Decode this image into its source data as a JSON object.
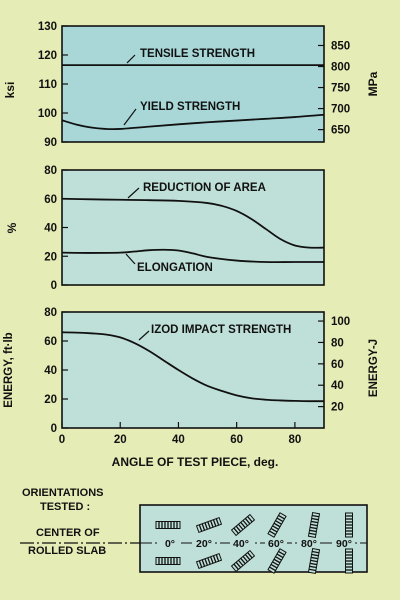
{
  "colors": {
    "page_background": "#e5ecb5",
    "panel_fill": "#bfe0d8",
    "strength_panel_fill": "#a9d7d8",
    "ink": "#111111"
  },
  "chart_data": [
    {
      "type": "line",
      "title": "",
      "xlabel": "",
      "ylabel": "ksi",
      "y2label": "MPa",
      "xlim": [
        0,
        90
      ],
      "ylim": [
        90,
        130
      ],
      "yticks": [
        "90",
        "100",
        "110",
        "120",
        "130"
      ],
      "y2ticks": [
        "650",
        "700",
        "750",
        "800",
        "850"
      ],
      "y2_values": [
        650,
        700,
        750,
        800,
        850
      ],
      "y2_to_y": 0.145038,
      "grid": false,
      "legend": "none",
      "series": [
        {
          "name": "TENSILE STRENGTH",
          "x": [
            0,
            15,
            30,
            45,
            60,
            75,
            90
          ],
          "y": [
            116.5,
            116.5,
            116.5,
            116.5,
            116.5,
            116.5,
            116.5
          ]
        },
        {
          "name": "YIELD STRENGTH",
          "x": [
            0,
            5,
            10,
            15,
            20,
            30,
            40,
            50,
            60,
            70,
            80,
            90
          ],
          "y": [
            97.5,
            96,
            95,
            94.5,
            94.5,
            95.3,
            96.1,
            96.8,
            97.4,
            98,
            98.6,
            99.4
          ]
        }
      ]
    },
    {
      "type": "line",
      "title": "",
      "xlabel": "",
      "ylabel": "%",
      "xlim": [
        0,
        90
      ],
      "ylim": [
        0,
        80
      ],
      "yticks": [
        "0",
        "20",
        "40",
        "60",
        "80"
      ],
      "grid": false,
      "legend": "none",
      "series": [
        {
          "name": "REDUCTION OF AREA",
          "x": [
            0,
            10,
            20,
            30,
            40,
            50,
            55,
            60,
            65,
            70,
            75,
            80,
            85,
            90
          ],
          "y": [
            60,
            59.6,
            59.3,
            59,
            58.5,
            57,
            55,
            51.5,
            46,
            39,
            32,
            27.5,
            26,
            26
          ]
        },
        {
          "name": "ELONGATION",
          "x": [
            0,
            10,
            20,
            25,
            30,
            35,
            40,
            45,
            50,
            60,
            70,
            80,
            90
          ],
          "y": [
            22.5,
            22.3,
            22.5,
            23.3,
            24.2,
            24.5,
            24,
            22,
            19.5,
            17,
            16,
            16,
            16
          ]
        }
      ]
    },
    {
      "type": "line",
      "title": "",
      "xlabel": "ANGLE OF TEST PIECE, deg.",
      "ylabel": "ENERGY, ft·lb",
      "y2label": "ENERGY-J",
      "xlim": [
        0,
        90
      ],
      "ylim": [
        0,
        80
      ],
      "xticks": [
        "0",
        "20",
        "40",
        "60",
        "80"
      ],
      "yticks": [
        "0",
        "20",
        "40",
        "60",
        "80"
      ],
      "y2ticks": [
        "20",
        "40",
        "60",
        "80",
        "100"
      ],
      "y2_values": [
        20,
        40,
        60,
        80,
        100
      ],
      "y2_to_y": 0.737562,
      "grid": false,
      "legend": "none",
      "series": [
        {
          "name": "IZOD IMPACT STRENGTH",
          "x": [
            0,
            5,
            10,
            15,
            20,
            25,
            30,
            35,
            40,
            45,
            50,
            55,
            60,
            65,
            70,
            75,
            80,
            85,
            90
          ],
          "y": [
            66,
            65.8,
            65.3,
            64.5,
            62.5,
            58.5,
            53,
            46.5,
            40,
            34,
            29,
            25.5,
            22.5,
            20.5,
            19.5,
            19,
            18.7,
            18.5,
            18.5
          ]
        }
      ]
    }
  ],
  "series_labels": {
    "tensile": "TENSILE STRENGTH",
    "yield": "YIELD STRENGTH",
    "reduction": "REDUCTION OF AREA",
    "elongation": "ELONGATION",
    "izod": "IZOD IMPACT STRENGTH"
  },
  "legend_box": {
    "heading_line1": "ORIENTATIONS",
    "heading_line2": "TESTED :",
    "center_line1": "CENTER OF",
    "center_line2": "ROLLED SLAB",
    "angles": [
      "0°",
      "20°",
      "40°",
      "60°",
      "80°",
      "90°"
    ],
    "angle_values": [
      0,
      20,
      40,
      60,
      80,
      90
    ]
  }
}
